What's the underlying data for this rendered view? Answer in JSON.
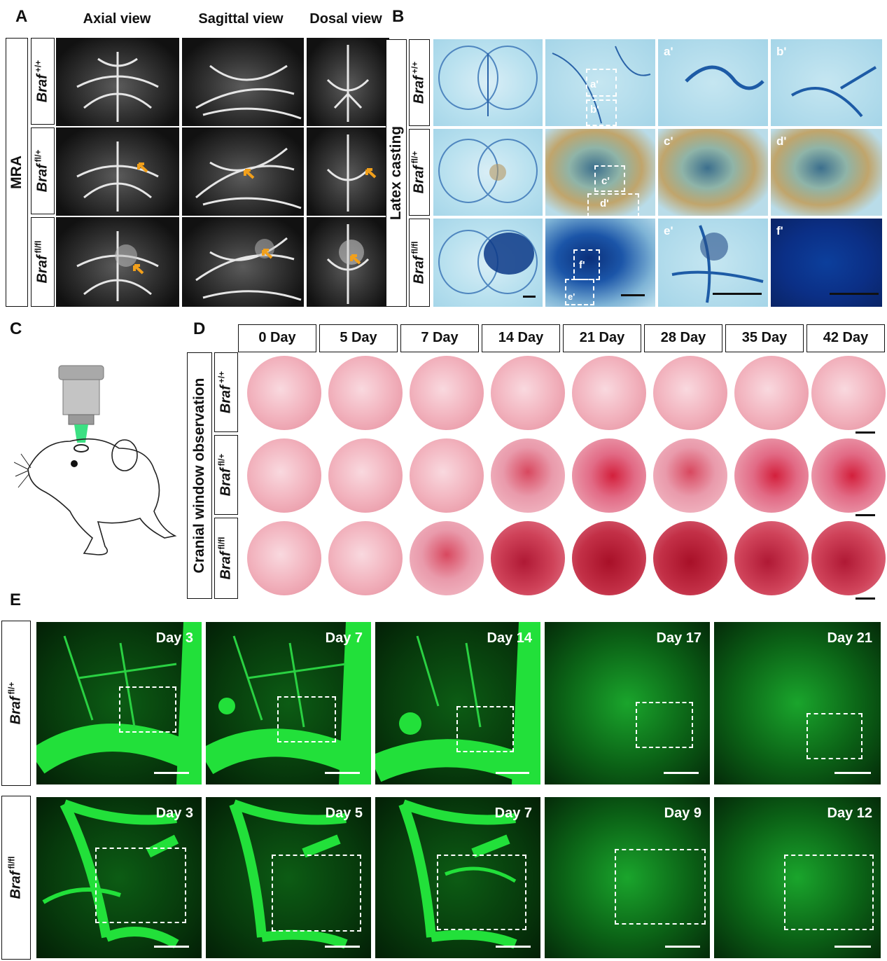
{
  "panel_letters": {
    "a": "A",
    "b": "B",
    "c": "C",
    "d": "D",
    "e": "E"
  },
  "panel_a": {
    "side_label": "MRA",
    "column_headers": [
      "Axial view",
      "Sagittal view",
      "Dosal view"
    ]
  },
  "panel_b": {
    "side_label": "Latex casting",
    "sub_labels": {
      "row1": [
        "a'",
        "b'"
      ],
      "row2": [
        "c'",
        "d'"
      ],
      "row3": [
        "e'",
        "f'"
      ]
    },
    "inset_labels": [
      "a'",
      "b'",
      "c'",
      "d'",
      "f'",
      "e'"
    ]
  },
  "genotypes": {
    "wt": {
      "gene": "Braf",
      "allele": "+/+"
    },
    "het": {
      "gene": "Braf",
      "allele": "fl/+"
    },
    "hom": {
      "gene": "Braf",
      "allele": "fl/fl"
    }
  },
  "panel_d": {
    "side_label": "Cranial window observation",
    "days": [
      "0 Day",
      "5 Day",
      "7 Day",
      "14 Day",
      "21 Day",
      "28 Day",
      "35 Day",
      "42 Day"
    ]
  },
  "panel_e": {
    "row1_days": [
      "Day 3",
      "Day 7",
      "Day 14",
      "Day 17",
      "Day 21"
    ],
    "row2_days": [
      "Day 3",
      "Day 5",
      "Day 7",
      "Day 9",
      "Day 12"
    ]
  },
  "colors": {
    "arrow_orange": "#f2a01b",
    "fluorescence_green": "#22e03a",
    "latex_blue": "#1f5fb0"
  }
}
